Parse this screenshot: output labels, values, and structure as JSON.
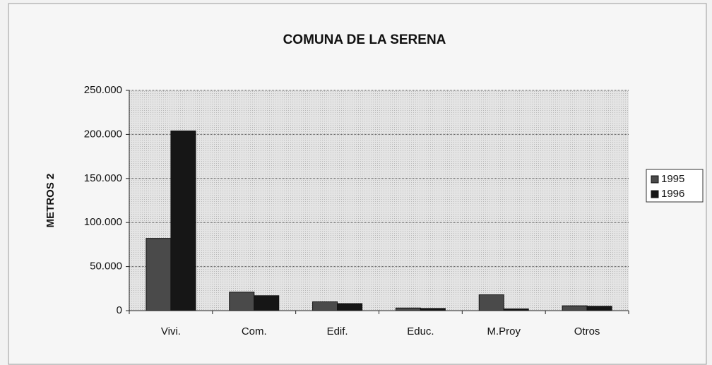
{
  "chart_data": {
    "type": "bar",
    "title": "COMUNA DE LA SERENA",
    "y_label": "METROS 2",
    "categories": [
      "Vivi.",
      "Com.",
      "Edif.",
      "Educ.",
      "M.Proy",
      "Otros"
    ],
    "series": [
      {
        "name": "1995",
        "color": "#4a4a4a",
        "values": [
          82000,
          21000,
          10000,
          3000,
          18000,
          5500
        ]
      },
      {
        "name": "1996",
        "color": "#161616",
        "values": [
          204000,
          17000,
          8000,
          2500,
          2000,
          5000
        ]
      }
    ],
    "ylim": [
      0,
      250000
    ],
    "yticks": [
      0,
      {
        "value": 50000,
        "label": "50.000"
      },
      {
        "value": 100000,
        "label": "100.000"
      },
      {
        "value": 150000,
        "label": "150.000"
      },
      {
        "value": 200000,
        "label": "200.000"
      },
      {
        "value": 250000,
        "label": "250.000"
      }
    ],
    "grid": true,
    "legend": "right"
  }
}
